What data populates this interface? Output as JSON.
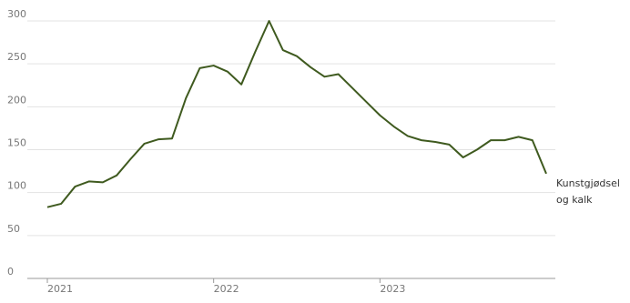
{
  "chart_data": {
    "type": "line",
    "categories": [
      "2021",
      null,
      null,
      null,
      null,
      null,
      null,
      null,
      null,
      null,
      null,
      null,
      "2022",
      null,
      null,
      null,
      null,
      null,
      null,
      null,
      null,
      null,
      null,
      null,
      "2023",
      null,
      null,
      null,
      null,
      null,
      null,
      null,
      null,
      null,
      null,
      null,
      null
    ],
    "series": [
      {
        "name": "Kunstgjødsel og kalk",
        "color": "#3f5a1f",
        "values": [
          83,
          87,
          107,
          113,
          112,
          120,
          139,
          157,
          162,
          163,
          210,
          245,
          248,
          241,
          226,
          264,
          300,
          266,
          259,
          246,
          235,
          238,
          222,
          206,
          190,
          177,
          166,
          161,
          159,
          156,
          141,
          150,
          161,
          161,
          165,
          161,
          122
        ]
      }
    ],
    "ylim": [
      0,
      300
    ],
    "yticks": [
      0,
      50,
      100,
      150,
      200,
      250,
      300
    ],
    "grid": true
  }
}
